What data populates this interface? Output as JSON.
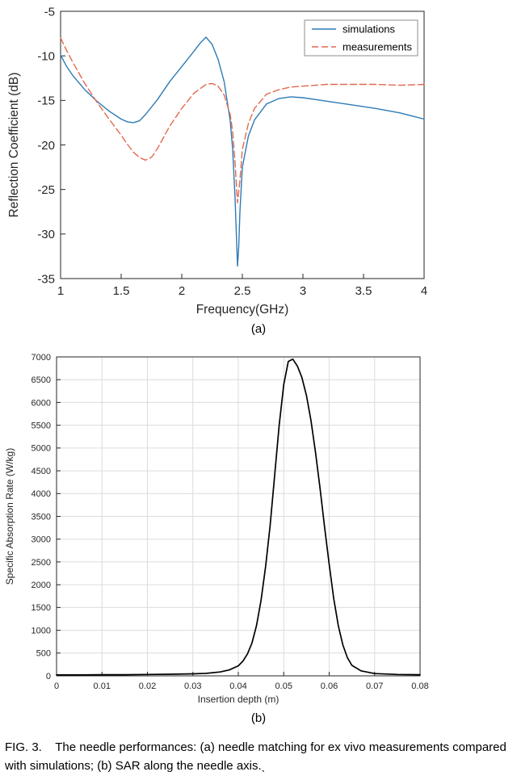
{
  "figure": {
    "label_a": "(a)",
    "label_b": "(b)",
    "caption": "FIG. 3.    The needle performances: (a) needle matching for ex vivo measurements compared with simulations; (b) SAR along the needle axis.ˎ"
  },
  "chart_data": [
    {
      "id": "chart-a",
      "type": "line",
      "title": "",
      "xlabel": "Frequency(GHz)",
      "ylabel": "Reflection Coefficient (dB)",
      "xlim": [
        1,
        4
      ],
      "ylim": [
        -35,
        -5
      ],
      "xticks": [
        1,
        1.5,
        2,
        2.5,
        3,
        3.5,
        4
      ],
      "xtick_labels": [
        "1",
        "1.5",
        "2",
        "2.5",
        "3",
        "3.5",
        "4"
      ],
      "yticks": [
        -35,
        -30,
        -25,
        -20,
        -15,
        -10,
        -5
      ],
      "ytick_labels": [
        "-35",
        "-30",
        "-25",
        "-20",
        "-15",
        "-10",
        "-5"
      ],
      "grid": false,
      "axis_color": "#262626",
      "grid_color": "#dcdcdc",
      "legend": {
        "visible": true,
        "location": "northeast"
      },
      "series": [
        {
          "name": "simulations",
          "color": "#2e7bb5",
          "style": "solid",
          "x": [
            1.0,
            1.05,
            1.1,
            1.2,
            1.3,
            1.4,
            1.5,
            1.55,
            1.6,
            1.65,
            1.7,
            1.8,
            1.9,
            2.0,
            2.1,
            2.15,
            2.2,
            2.25,
            2.3,
            2.35,
            2.4,
            2.42,
            2.44,
            2.46,
            2.47,
            2.48,
            2.5,
            2.55,
            2.6,
            2.7,
            2.8,
            2.9,
            3.0,
            3.1,
            3.2,
            3.4,
            3.6,
            3.8,
            4.0
          ],
          "y": [
            -9.9,
            -11.2,
            -12.2,
            -13.8,
            -15.1,
            -16.2,
            -17.1,
            -17.4,
            -17.5,
            -17.3,
            -16.6,
            -14.9,
            -12.9,
            -11.2,
            -9.5,
            -8.6,
            -7.9,
            -8.7,
            -10.4,
            -12.9,
            -17.3,
            -20.5,
            -26.0,
            -33.6,
            -31.5,
            -27.5,
            -22.5,
            -19.0,
            -17.2,
            -15.4,
            -14.8,
            -14.6,
            -14.7,
            -14.9,
            -15.1,
            -15.5,
            -15.9,
            -16.4,
            -17.1
          ]
        },
        {
          "name": "measurements",
          "color": "#e2694e",
          "style": "dashed",
          "x": [
            1.0,
            1.05,
            1.1,
            1.2,
            1.3,
            1.4,
            1.5,
            1.55,
            1.6,
            1.65,
            1.7,
            1.75,
            1.8,
            1.9,
            2.0,
            2.1,
            2.2,
            2.25,
            2.3,
            2.35,
            2.4,
            2.42,
            2.44,
            2.46,
            2.48,
            2.5,
            2.55,
            2.6,
            2.7,
            2.8,
            2.9,
            3.0,
            3.2,
            3.4,
            3.6,
            3.8,
            4.0
          ],
          "y": [
            -8.0,
            -9.4,
            -10.7,
            -13.1,
            -15.2,
            -17.1,
            -18.9,
            -19.9,
            -20.8,
            -21.4,
            -21.7,
            -21.4,
            -20.4,
            -17.9,
            -15.9,
            -14.2,
            -13.2,
            -13.1,
            -13.4,
            -14.4,
            -16.6,
            -18.5,
            -22.0,
            -26.5,
            -24.0,
            -20.5,
            -17.6,
            -15.9,
            -14.3,
            -13.8,
            -13.5,
            -13.4,
            -13.2,
            -13.2,
            -13.2,
            -13.3,
            -13.2
          ]
        }
      ]
    },
    {
      "id": "chart-b",
      "type": "line",
      "title": "",
      "xlabel": "Insertion depth (m)",
      "ylabel": "Specific Absorption Rate (W/kg)",
      "xlim": [
        0,
        0.08
      ],
      "ylim": [
        0,
        7000
      ],
      "xticks": [
        0,
        0.01,
        0.02,
        0.03,
        0.04,
        0.05,
        0.06,
        0.07,
        0.08
      ],
      "xtick_labels": [
        "0",
        "0.01",
        "0.02",
        "0.03",
        "0.04",
        "0.05",
        "0.06",
        "0.07",
        "0.08"
      ],
      "yticks": [
        0,
        500,
        1000,
        1500,
        2000,
        2500,
        3000,
        3500,
        4000,
        4500,
        5000,
        5500,
        6000,
        6500,
        7000
      ],
      "ytick_labels": [
        "0",
        "500",
        "1000",
        "1500",
        "2000",
        "2500",
        "3000",
        "3500",
        "4000",
        "4500",
        "5000",
        "5500",
        "6000",
        "6500",
        "7000"
      ],
      "grid": true,
      "axis_color": "#262626",
      "grid_color": "#dcdcdc",
      "legend": {
        "visible": false,
        "location": "none"
      },
      "series": [
        {
          "name": "SAR",
          "color": "#000000",
          "style": "solid",
          "x": [
            0,
            0.005,
            0.01,
            0.015,
            0.02,
            0.025,
            0.03,
            0.033,
            0.036,
            0.038,
            0.04,
            0.041,
            0.042,
            0.043,
            0.044,
            0.045,
            0.046,
            0.047,
            0.048,
            0.049,
            0.05,
            0.051,
            0.052,
            0.053,
            0.054,
            0.055,
            0.056,
            0.057,
            0.058,
            0.059,
            0.06,
            0.061,
            0.062,
            0.063,
            0.064,
            0.065,
            0.067,
            0.07,
            0.075,
            0.08
          ],
          "y": [
            20,
            20,
            25,
            25,
            30,
            35,
            45,
            55,
            85,
            130,
            220,
            320,
            480,
            720,
            1100,
            1650,
            2400,
            3300,
            4400,
            5500,
            6400,
            6900,
            6950,
            6800,
            6550,
            6150,
            5600,
            4900,
            4100,
            3250,
            2450,
            1700,
            1100,
            680,
            400,
            230,
            110,
            50,
            30,
            25
          ]
        }
      ]
    }
  ]
}
